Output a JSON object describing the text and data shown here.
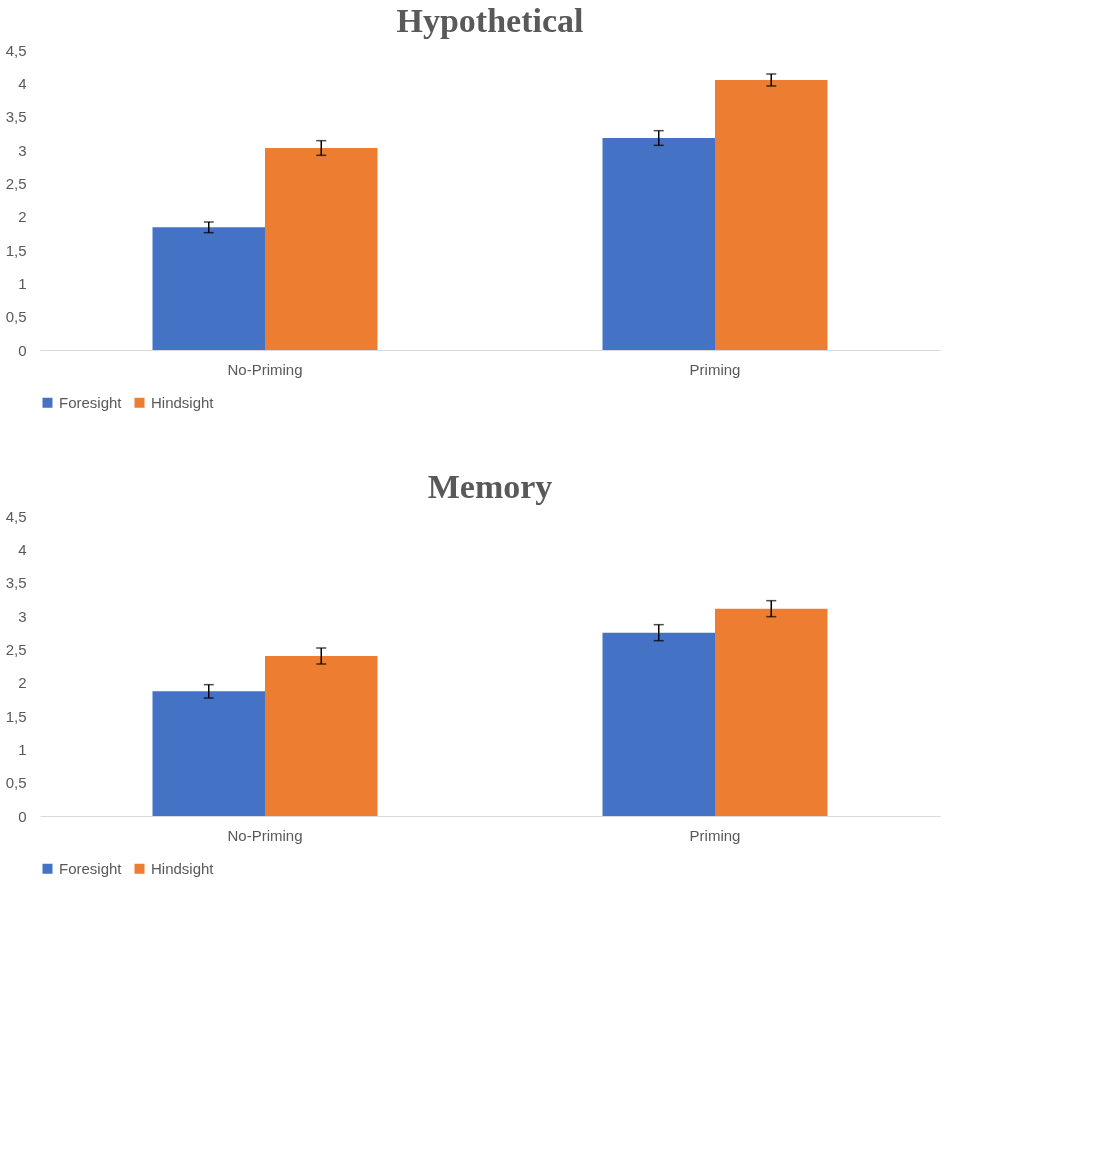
{
  "chart_data": [
    {
      "type": "bar",
      "title": "Hypothetical",
      "categories": [
        "No-Priming",
        "Priming"
      ],
      "series": [
        {
          "name": "Foresight",
          "color": "#4472c4",
          "values": [
            1.84,
            3.18
          ],
          "errors": [
            0.08,
            0.11
          ]
        },
        {
          "name": "Hindsight",
          "color": "#ed7d31",
          "values": [
            3.03,
            4.05
          ],
          "errors": [
            0.11,
            0.09
          ]
        }
      ],
      "ylim": [
        0,
        4.5
      ],
      "yticks": [
        0,
        {
          "value": 0.5,
          "label": "0,5"
        },
        1,
        {
          "value": 1.5,
          "label": "1,5"
        },
        2,
        {
          "value": 2.5,
          "label": "2,5"
        },
        3,
        {
          "value": 3.5,
          "label": "3,5"
        },
        4,
        {
          "value": 4.5,
          "label": "4,5"
        }
      ],
      "grid": false,
      "legend": "bottom"
    },
    {
      "type": "bar",
      "title": "Memory",
      "categories": [
        "No-Priming",
        "Priming"
      ],
      "series": [
        {
          "name": "Foresight",
          "color": "#4472c4",
          "values": [
            1.87,
            2.75
          ],
          "errors": [
            0.1,
            0.12
          ]
        },
        {
          "name": "Hindsight",
          "color": "#ed7d31",
          "values": [
            2.4,
            3.11
          ],
          "errors": [
            0.12,
            0.12
          ]
        }
      ],
      "ylim": [
        0,
        4.5
      ],
      "yticks": [
        0,
        {
          "value": 0.5,
          "label": "0,5"
        },
        1,
        {
          "value": 1.5,
          "label": "1,5"
        },
        2,
        {
          "value": 2.5,
          "label": "2,5"
        },
        3,
        {
          "value": 3.5,
          "label": "3,5"
        },
        4,
        {
          "value": 4.5,
          "label": "4,5"
        }
      ],
      "grid": false,
      "legend": "bottom"
    }
  ]
}
